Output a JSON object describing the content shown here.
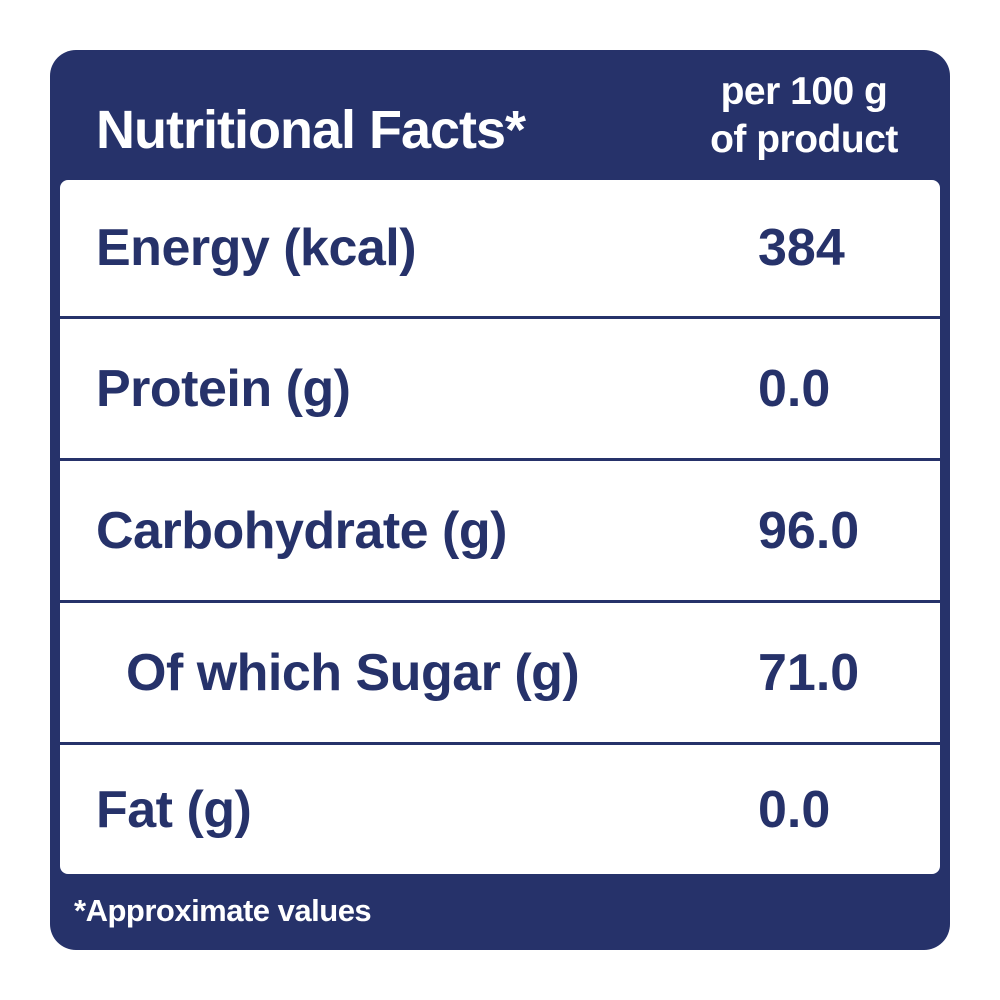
{
  "colors": {
    "brand_navy": "#26326a",
    "background": "#ffffff",
    "text_on_navy": "#ffffff"
  },
  "header": {
    "title": "Nutritional Facts*",
    "per_line1": "per 100 g",
    "per_line2": "of product"
  },
  "rows": [
    {
      "label": "Energy (kcal)",
      "value": "384"
    },
    {
      "label": "Protein (g)",
      "value": "0.0"
    },
    {
      "label": "Carbohydrate (g)",
      "value": "96.0"
    },
    {
      "label": "Of which Sugar (g)",
      "value": "71.0"
    },
    {
      "label": "Fat (g)",
      "value": "0.0"
    }
  ],
  "footnote": "*Approximate values"
}
